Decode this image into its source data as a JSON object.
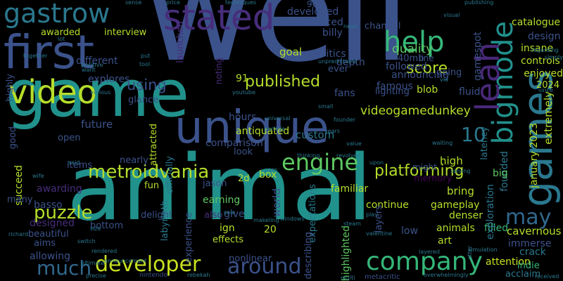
{
  "words": [
    {
      "text": "well",
      "color": "#3b528b",
      "vertical": false
    },
    {
      "text": "animal",
      "color": "#21918c",
      "vertical": false
    },
    {
      "text": "game",
      "color": "#21918c",
      "vertical": false
    },
    {
      "text": "unique",
      "color": "#3b528b",
      "vertical": false
    },
    {
      "text": "first",
      "color": "#3b528b",
      "vertical": false
    },
    {
      "text": "gastrow",
      "color": "#2a788e",
      "vertical": false
    },
    {
      "text": "stated",
      "color": "#472d7b",
      "vertical": false
    },
    {
      "text": "video",
      "color": "#b5de2b",
      "vertical": false
    },
    {
      "text": "games",
      "color": "#2a788e",
      "vertical": true
    },
    {
      "text": "bigmode",
      "color": "#21918c",
      "vertical": true
    },
    {
      "text": "help",
      "color": "#35b779",
      "vertical": false
    },
    {
      "text": "leah",
      "color": "#482878",
      "vertical": true
    },
    {
      "text": "metroidvania",
      "color": "#b5de2b",
      "vertical": false
    },
    {
      "text": "engine",
      "color": "#5ec962",
      "vertical": false
    },
    {
      "text": "company",
      "color": "#35b779",
      "vertical": false
    },
    {
      "text": "developer",
      "color": "#c8e020",
      "vertical": false
    },
    {
      "text": "around",
      "color": "#3b528b",
      "vertical": false
    },
    {
      "text": "much",
      "color": "#31688e",
      "vertical": false
    },
    {
      "text": "may",
      "color": "#31688e",
      "vertical": false
    },
    {
      "text": "puzzle",
      "color": "#b5de2b",
      "vertical": false
    },
    {
      "text": "published",
      "color": "#b5de2b",
      "vertical": false
    },
    {
      "text": "platforming",
      "color": "#b5de2b",
      "vertical": false
    },
    {
      "text": "videogamedunkey",
      "color": "#b5de2b",
      "vertical": false
    },
    {
      "text": "score",
      "color": "#b5de2b",
      "vertical": false
    },
    {
      "text": "10",
      "color": "#2a788e",
      "vertical": false
    },
    {
      "text": "quality",
      "color": "#5ec962",
      "vertical": false
    },
    {
      "text": "using",
      "color": "#3b528b",
      "vertical": false
    },
    {
      "text": "catalogue",
      "color": "#b5de2b",
      "vertical": false
    },
    {
      "text": "design",
      "color": "#3b528b",
      "vertical": false
    },
    {
      "text": "insane",
      "color": "#b5de2b",
      "vertical": false
    },
    {
      "text": "controls",
      "color": "#b5de2b",
      "vertical": false
    },
    {
      "text": "enjoyed",
      "color": "#b5de2b",
      "vertical": false
    },
    {
      "text": "2024",
      "color": "#b5de2b",
      "vertical": false
    },
    {
      "text": "gamespot",
      "color": "#3b528b",
      "vertical": true
    },
    {
      "text": "extremely",
      "color": "#b5de2b",
      "vertical": true
    },
    {
      "text": "january 2023",
      "color": "#b5de2b",
      "vertical": true
    },
    {
      "text": "latency",
      "color": "#2a788e",
      "vertical": true
    },
    {
      "text": "founded",
      "color": "#2a788e",
      "vertical": true
    },
    {
      "text": "high",
      "color": "#b5de2b",
      "vertical": false
    },
    {
      "text": "big",
      "color": "#5ec962",
      "vertical": false
    },
    {
      "text": "bring",
      "color": "#b5de2b",
      "vertical": false
    },
    {
      "text": "gameplay",
      "color": "#b5de2b",
      "vertical": false
    },
    {
      "text": "denser",
      "color": "#b5de2b",
      "vertical": false
    },
    {
      "text": "animals",
      "color": "#b5de2b",
      "vertical": false
    },
    {
      "text": "filled",
      "color": "#35b779",
      "vertical": false
    },
    {
      "text": "art",
      "color": "#b5de2b",
      "vertical": false
    },
    {
      "text": "cavernous",
      "color": "#b5de2b",
      "vertical": false
    },
    {
      "text": "immerse",
      "color": "#3b528b",
      "vertical": false
    },
    {
      "text": "crack",
      "color": "#2a788e",
      "vertical": false
    },
    {
      "text": "attention",
      "color": "#c8e020",
      "vertical": false
    },
    {
      "text": "indie",
      "color": "#35b779",
      "vertical": false
    },
    {
      "text": "acclaim",
      "color": "#2a788e",
      "vertical": false
    },
    {
      "text": "exploration",
      "color": "#2a788e",
      "vertical": true
    },
    {
      "text": "highlighted",
      "color": "#5ec962",
      "vertical": true
    },
    {
      "text": "continue",
      "color": "#b5de2b",
      "vertical": false
    },
    {
      "text": "familiar",
      "color": "#b5de2b",
      "vertical": false
    },
    {
      "text": "custom",
      "color": "#2a788e",
      "vertical": false
    },
    {
      "text": "antiquated",
      "color": "#b5de2b",
      "vertical": false
    },
    {
      "text": "hours",
      "color": "#3b528b",
      "vertical": false
    },
    {
      "text": "comparison",
      "color": "#3b528b",
      "vertical": false
    },
    {
      "text": "look",
      "color": "#3b528b",
      "vertical": false
    },
    {
      "text": "box",
      "color": "#b5de2b",
      "vertical": false
    },
    {
      "text": "world",
      "color": "#3b528b",
      "vertical": true
    },
    {
      "text": "2d",
      "color": "#b5de2b",
      "vertical": false
    },
    {
      "text": "jason",
      "color": "#3b528b",
      "vertical": false
    },
    {
      "text": "earning",
      "color": "#5ec962",
      "vertical": false
    },
    {
      "text": "give",
      "color": "#3b528b",
      "vertical": false
    },
    {
      "text": "ign",
      "color": "#b5de2b",
      "vertical": false
    },
    {
      "text": "20",
      "color": "#b5de2b",
      "vertical": false
    },
    {
      "text": "effects",
      "color": "#b5de2b",
      "vertical": false
    },
    {
      "text": "nonlinear",
      "color": "#3b528b",
      "vertical": false
    },
    {
      "text": "expectations",
      "color": "#2a788e",
      "vertical": true
    },
    {
      "text": "layers",
      "color": "#3b528b",
      "vertical": true
    },
    {
      "text": "low",
      "color": "#3b528b",
      "vertical": false
    },
    {
      "text": "memory",
      "color": "#440154",
      "vertical": false
    },
    {
      "text": "describing",
      "color": "#3b528b",
      "vertical": true
    },
    {
      "text": "fun",
      "color": "#b5de2b",
      "vertical": false
    },
    {
      "text": "delight",
      "color": "#3b528b",
      "vertical": false
    },
    {
      "text": "experience",
      "color": "#3b528b",
      "vertical": true
    },
    {
      "text": "labyrinth",
      "color": "#2a788e",
      "vertical": true
    },
    {
      "text": "also",
      "color": "#472d7b",
      "vertical": false
    },
    {
      "text": "nearly",
      "color": "#3b528b",
      "vertical": false
    },
    {
      "text": "attracted",
      "color": "#b5de2b",
      "vertical": true
    },
    {
      "text": "officially",
      "color": "#2a788e",
      "vertical": true
    },
    {
      "text": "future",
      "color": "#3b528b",
      "vertical": false
    },
    {
      "text": "glance",
      "color": "#3b528b",
      "vertical": false
    },
    {
      "text": "explores",
      "color": "#3b528b",
      "vertical": false
    },
    {
      "text": "different",
      "color": "#3b528b",
      "vertical": false
    },
    {
      "text": "awarded",
      "color": "#b5de2b",
      "vertical": false
    },
    {
      "text": "interview",
      "color": "#b5de2b",
      "vertical": false
    },
    {
      "text": "launched",
      "color": "#472d7b",
      "vertical": true
    },
    {
      "text": "noting",
      "color": "#472d7b",
      "vertical": true
    },
    {
      "text": "goal",
      "color": "#b5de2b",
      "vertical": false
    },
    {
      "text": "91",
      "color": "#b5de2b",
      "vertical": false
    },
    {
      "text": "fans",
      "color": "#3b528b",
      "vertical": false
    },
    {
      "text": "depth",
      "color": "#3b528b",
      "vertical": false
    },
    {
      "text": "critics",
      "color": "#3b528b",
      "vertical": false
    },
    {
      "text": "ever",
      "color": "#3b528b",
      "vertical": false
    },
    {
      "text": "developed",
      "color": "#3b528b",
      "vertical": false
    },
    {
      "text": "announced",
      "color": "#3b528b",
      "vertical": false
    },
    {
      "text": "billy",
      "color": "#3b528b",
      "vertical": false
    },
    {
      "text": "90",
      "color": "#3b528b",
      "vertical": false
    },
    {
      "text": "channel",
      "color": "#3b528b",
      "vertical": false
    },
    {
      "text": "going",
      "color": "#3b528b",
      "vertical": false
    },
    {
      "text": "followed",
      "color": "#3b528b",
      "vertical": false
    },
    {
      "text": "announcing",
      "color": "#3b528b",
      "vertical": false
    },
    {
      "text": "famous",
      "color": "#3b528b",
      "vertical": false
    },
    {
      "text": "lighting",
      "color": "#3b528b",
      "vertical": false
    },
    {
      "text": "blob",
      "color": "#b5de2b",
      "vertical": false
    },
    {
      "text": "fluid",
      "color": "#3b528b",
      "vertical": false
    },
    {
      "text": "40mb",
      "color": "#3b528b",
      "vertical": false
    },
    {
      "text": "line",
      "color": "#3b528b",
      "vertical": false
    },
    {
      "text": "succeed",
      "color": "#b5de2b",
      "vertical": true
    },
    {
      "text": "good",
      "color": "#3b528b",
      "vertical": true
    },
    {
      "text": "awarding",
      "color": "#472d7b",
      "vertical": false
    },
    {
      "text": "basso",
      "color": "#3b528b",
      "vertical": false
    },
    {
      "text": "designed",
      "color": "#472d7b",
      "vertical": false
    },
    {
      "text": "beautiful",
      "color": "#3b528b",
      "vertical": false
    },
    {
      "text": "aims",
      "color": "#3b528b",
      "vertical": false
    },
    {
      "text": "allowing",
      "color": "#3b528b",
      "vertical": false
    },
    {
      "text": "bottom",
      "color": "#3b528b",
      "vertical": false
    },
    {
      "text": "items",
      "color": "#3b528b",
      "vertical": false
    },
    {
      "text": "open",
      "color": "#3b528b",
      "vertical": false
    },
    {
      "text": "many",
      "color": "#3b528b",
      "vertical": false
    },
    {
      "text": "highly",
      "color": "#3b528b",
      "vertical": true
    },
    {
      "text": "might",
      "color": "#3b528b",
      "vertical": false
    },
    {
      "text": "nintendo",
      "color": "#3b528b",
      "vertical": false
    },
    {
      "text": "metacritic",
      "color": "#3b528b",
      "vertical": false
    },
    {
      "text": "sense",
      "color": "#2a788e",
      "vertical": false
    },
    {
      "text": "price",
      "color": "#2a788e",
      "vertical": false
    },
    {
      "text": "techniques",
      "color": "#2a788e",
      "vertical": false
    },
    {
      "text": "publishing",
      "color": "#2a788e",
      "vertical": false
    },
    {
      "text": "visual",
      "color": "#2a788e",
      "vertical": false
    },
    {
      "text": "regarding",
      "color": "#2a788e",
      "vertical": false
    },
    {
      "text": "simply",
      "color": "#2a788e",
      "vertical": false
    },
    {
      "text": "via",
      "color": "#2a788e",
      "vertical": false
    },
    {
      "text": "since",
      "color": "#2a788e",
      "vertical": false
    },
    {
      "text": "youtube",
      "color": "#2a788e",
      "vertical": false
    },
    {
      "text": "small",
      "color": "#2a788e",
      "vertical": false
    },
    {
      "text": "universal",
      "color": "#2a788e",
      "vertical": false
    },
    {
      "text": "years",
      "color": "#2a788e",
      "vertical": false
    },
    {
      "text": "value",
      "color": "#2a788e",
      "vertical": false
    },
    {
      "text": "upon",
      "color": "#2a788e",
      "vertical": false
    },
    {
      "text": "uses",
      "color": "#2a788e",
      "vertical": false
    },
    {
      "text": "said",
      "color": "#2a788e",
      "vertical": false
    },
    {
      "text": "wife",
      "color": "#2a788e",
      "vertical": false
    },
    {
      "text": "size",
      "color": "#2a788e",
      "vertical": false
    },
    {
      "text": "switch",
      "color": "#2a788e",
      "vertical": false
    },
    {
      "text": "ultimate",
      "color": "#2a788e",
      "vertical": false
    },
    {
      "text": "precise",
      "color": "#2a788e",
      "vertical": false
    },
    {
      "text": "richard",
      "color": "#2a788e",
      "vertical": false
    },
    {
      "text": "rendered",
      "color": "#2a788e",
      "vertical": false
    },
    {
      "text": "rebekah",
      "color": "#2a788e",
      "vertical": false
    },
    {
      "text": "sole",
      "color": "#2a788e",
      "vertical": false
    },
    {
      "text": "makeling",
      "color": "#2a788e",
      "vertical": false
    },
    {
      "text": "announcement",
      "color": "#2a788e",
      "vertical": false
    },
    {
      "text": "steam",
      "color": "#2a788e",
      "vertical": false
    },
    {
      "text": "windows",
      "color": "#2a788e",
      "vertical": false
    },
    {
      "text": "valentine",
      "color": "#2a788e",
      "vertical": false
    },
    {
      "text": "play",
      "color": "#2a788e",
      "vertical": false
    },
    {
      "text": "multi",
      "color": "#2a788e",
      "vertical": false
    },
    {
      "text": "overwhelmingly",
      "color": "#2a788e",
      "vertical": false
    },
    {
      "text": "received",
      "color": "#2a788e",
      "vertical": false
    },
    {
      "text": "simulation",
      "color": "#2a788e",
      "vertical": false
    },
    {
      "text": "layered",
      "color": "#2a788e",
      "vertical": false
    },
    {
      "text": "thinking",
      "color": "#2a788e",
      "vertical": false
    },
    {
      "text": "revolves",
      "color": "#2a788e",
      "vertical": false
    },
    {
      "text": "solving",
      "color": "#2a788e",
      "vertical": false
    },
    {
      "text": "waiting",
      "color": "#2a788e",
      "vertical": false
    },
    {
      "text": "founder",
      "color": "#2a788e",
      "vertical": false
    },
    {
      "text": "particle",
      "color": "#2a788e",
      "vertical": false
    },
    {
      "text": "unpredictable",
      "color": "#2a788e",
      "vertical": false
    },
    {
      "text": "tool",
      "color": "#2a788e",
      "vertical": false
    },
    {
      "text": "put",
      "color": "#2a788e",
      "vertical": false
    },
    {
      "text": "positive",
      "color": "#2a788e",
      "vertical": false
    },
    {
      "text": "want",
      "color": "#2a788e",
      "vertical": false
    },
    {
      "text": "together",
      "color": "#2a788e",
      "vertical": false
    },
    {
      "text": "lot",
      "color": "#2a788e",
      "vertical": false
    },
    {
      "text": "various",
      "color": "#2a788e",
      "vertical": false
    },
    {
      "text": "utter",
      "color": "#2a788e",
      "vertical": true
    },
    {
      "text": "neon",
      "color": "#2a788e",
      "vertical": false
    }
  ]
}
